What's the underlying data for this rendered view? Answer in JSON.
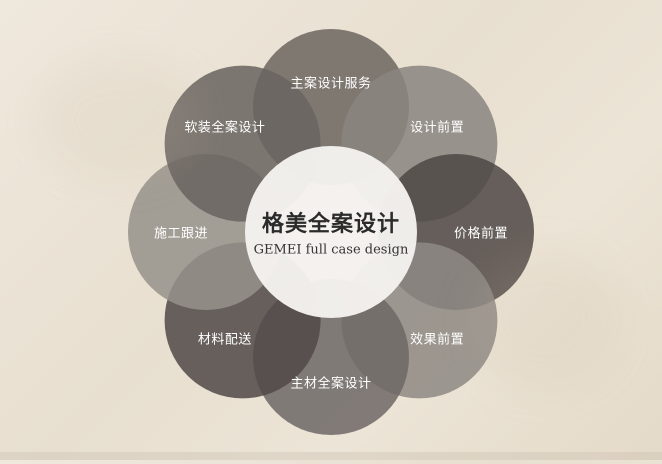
{
  "center": {
    "title": "格美全案设计",
    "subtitle": "GEMEI full case design",
    "color": "#f4f2ee"
  },
  "petals": [
    {
      "label": "主案设计服务",
      "color": "#6d6661"
    },
    {
      "label": "设计前置",
      "color": "#8a8580"
    },
    {
      "label": "价格前置",
      "color": "#4f4846"
    },
    {
      "label": "效果前置",
      "color": "#8e8984"
    },
    {
      "label": "主材全案设计",
      "color": "#6f6966"
    },
    {
      "label": "材料配送",
      "color": "#504948"
    },
    {
      "label": "施工跟进",
      "color": "#96918b"
    },
    {
      "label": "软装全案设计",
      "color": "#6a6461"
    }
  ]
}
